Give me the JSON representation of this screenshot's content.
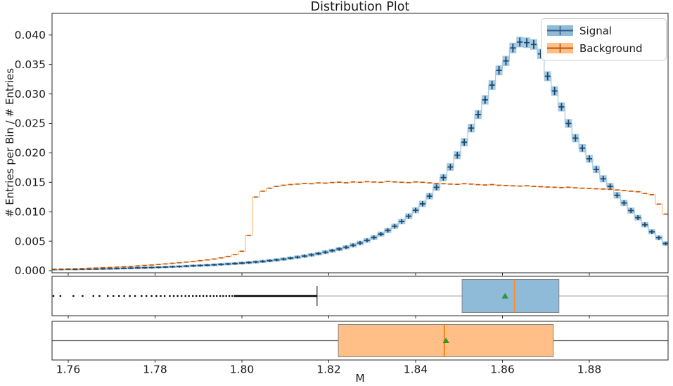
{
  "figure": {
    "title": "Distribution Plot",
    "xlabel": "M",
    "ylabel": "# Entries per Bin / # Entries"
  },
  "legend": {
    "items": [
      {
        "label": "Signal",
        "patch_color": "#8fbbd9",
        "cross_color": "#2d5f8a"
      },
      {
        "label": "Background",
        "patch_color": "#ffbf86",
        "cross_color": "#b9560f"
      }
    ]
  },
  "chart_data": {
    "type": "histogram+boxplots",
    "title": "Distribution Plot",
    "xlabel": "M",
    "ylabel": "# Entries per Bin / # Entries",
    "xlim": [
      1.7563,
      1.8981
    ],
    "ylim": [
      -0.0004,
      0.0437
    ],
    "grid": false,
    "legend_position": "upper right",
    "x_tick_labels": [
      "1.76",
      "1.78",
      "1.80",
      "1.82",
      "1.84",
      "1.86",
      "1.88"
    ],
    "x_tick_values": [
      1.76,
      1.78,
      1.8,
      1.82,
      1.84,
      1.86,
      1.88
    ],
    "y_tick_labels": [
      "0.000",
      "0.005",
      "0.010",
      "0.015",
      "0.020",
      "0.025",
      "0.030",
      "0.035",
      "0.040"
    ],
    "y_tick_values": [
      0.0,
      0.005,
      0.01,
      0.015,
      0.02,
      0.025,
      0.03,
      0.035,
      0.04
    ],
    "bin_start": 1.756,
    "bin_width": 0.0016,
    "series": [
      {
        "name": "Signal",
        "style": "step-with-errorboxes",
        "line_color": "#a9cce3",
        "band_color": "#1f77b4",
        "marker_color": "#17486f",
        "values": [
          0.0002,
          0.00021,
          0.00023,
          0.00022,
          0.00025,
          0.00027,
          0.00028,
          0.00031,
          0.00033,
          0.00036,
          0.0004,
          0.00043,
          0.00047,
          0.0005,
          0.00054,
          0.00058,
          0.00062,
          0.00067,
          0.00071,
          0.00077,
          0.00083,
          0.00088,
          0.00094,
          0.001,
          0.00107,
          0.00114,
          0.00121,
          0.00129,
          0.00138,
          0.00148,
          0.00158,
          0.0017,
          0.00183,
          0.00197,
          0.00213,
          0.0023,
          0.00248,
          0.00268,
          0.0029,
          0.00314,
          0.0034,
          0.00368,
          0.00398,
          0.00432,
          0.0047,
          0.00515,
          0.00565,
          0.0062,
          0.00685,
          0.00755,
          0.00835,
          0.00925,
          0.01025,
          0.01135,
          0.01265,
          0.01415,
          0.0158,
          0.0176,
          0.0196,
          0.0218,
          0.0242,
          0.0265,
          0.029,
          0.0315,
          0.034,
          0.0356,
          0.0378,
          0.0388,
          0.0387,
          0.0384,
          0.0368,
          0.033,
          0.0305,
          0.0278,
          0.025,
          0.0225,
          0.0208,
          0.019,
          0.0172,
          0.0156,
          0.0143,
          0.0128,
          0.0115,
          0.0102,
          0.009,
          0.0078,
          0.0066,
          0.0056,
          0.0046
        ]
      },
      {
        "name": "Background",
        "style": "step-with-dashes",
        "line_color": "#fdc48f",
        "marker_color": "#c1570e",
        "values": [
          0.00026,
          0.00028,
          0.00031,
          0.00034,
          0.00037,
          0.00041,
          0.00045,
          0.0005,
          0.00055,
          0.00061,
          0.00067,
          0.00074,
          0.00081,
          0.00089,
          0.00097,
          0.00106,
          0.00115,
          0.00125,
          0.00135,
          0.00146,
          0.00158,
          0.0017,
          0.00183,
          0.00198,
          0.00218,
          0.00242,
          0.00272,
          0.0033,
          0.006,
          0.0125,
          0.0135,
          0.014,
          0.0143,
          0.0145,
          0.01462,
          0.0147,
          0.01481,
          0.01476,
          0.0149,
          0.01486,
          0.01496,
          0.01502,
          0.01492,
          0.01506,
          0.015,
          0.01511,
          0.01505,
          0.015,
          0.01516,
          0.01506,
          0.015,
          0.01495,
          0.01506,
          0.015,
          0.0149,
          0.01481,
          0.01476,
          0.0147,
          0.01466,
          0.01476,
          0.0147,
          0.0146,
          0.01455,
          0.01461,
          0.0145,
          0.01446,
          0.0144,
          0.01436,
          0.01441,
          0.0143,
          0.01426,
          0.0142,
          0.01416,
          0.0141,
          0.01416,
          0.01406,
          0.014,
          0.01396,
          0.0139,
          0.01386,
          0.0138,
          0.0137,
          0.0136,
          0.0135,
          0.0134,
          0.0131,
          0.0129,
          0.0113,
          0.0096
        ]
      }
    ],
    "boxplots": [
      {
        "name": "Signal",
        "q1": 1.8507,
        "median": 1.8628,
        "q3": 1.873,
        "mean": 1.8606,
        "whisker_low": 1.8173,
        "whisker_low_capped": true,
        "whisker_high": 1.8981,
        "whisker_high_capped": false,
        "fill": "#8fbbd9",
        "edge": "#848484",
        "median_color": "#ff8c2a",
        "mean_color": "#2ca02c",
        "whisker_color": "#b5b5b5",
        "cap_color": "#3c3c3c",
        "outlier_color": "#000000",
        "outlier_dense_from": 1.7982,
        "outliers": [
          1.7566,
          1.7582,
          1.7612,
          1.7633,
          1.7658,
          1.7672,
          1.7691,
          1.7704,
          1.7717,
          1.7729,
          1.7742,
          1.7754,
          1.7769,
          1.778,
          1.7792,
          1.7803,
          1.7813,
          1.7822,
          1.7834,
          1.7843,
          1.7852,
          1.7861,
          1.787,
          1.7878,
          1.7887,
          1.7895,
          1.7903,
          1.7911,
          1.7919,
          1.7927,
          1.7935,
          1.7942,
          1.795,
          1.7957,
          1.7964,
          1.7971,
          1.7978,
          1.7985
        ]
      },
      {
        "name": "Background",
        "q1": 1.8222,
        "median": 1.8466,
        "q3": 1.8717,
        "mean": 1.847,
        "whisker_low": 1.7563,
        "whisker_low_capped": false,
        "whisker_high": 1.8981,
        "whisker_high_capped": false,
        "fill": "#ffbf86",
        "edge": "#848484",
        "median_color": "#f0810f",
        "mean_color": "#2ca02c",
        "whisker_color": "#565656",
        "cap_color": "#3c3c3c",
        "outlier_color": "#000000",
        "outliers": []
      }
    ]
  }
}
